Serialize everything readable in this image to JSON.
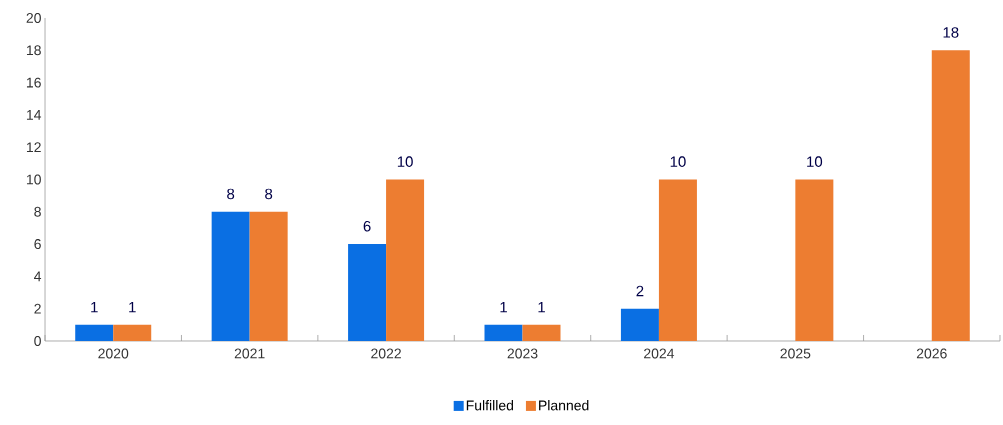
{
  "chart_data": {
    "type": "bar",
    "categories": [
      "2020",
      "2021",
      "2022",
      "2023",
      "2024",
      "2025",
      "2026"
    ],
    "series": [
      {
        "name": "Fulfilled",
        "color": "#0a6fe3",
        "values": [
          1,
          8,
          6,
          1,
          2,
          null,
          null
        ]
      },
      {
        "name": "Planned",
        "color": "#ed7d31",
        "values": [
          1,
          8,
          10,
          1,
          10,
          10,
          18
        ]
      }
    ],
    "ylim": [
      0,
      20
    ],
    "yticks": [
      0,
      2,
      4,
      6,
      8,
      10,
      12,
      14,
      16,
      18,
      20
    ],
    "grid": false,
    "legend": "bottom",
    "data_labels": true
  }
}
